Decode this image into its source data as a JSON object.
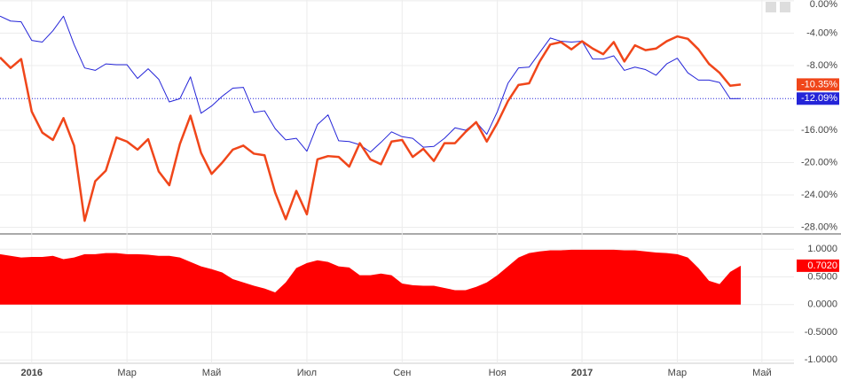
{
  "chart_data": [
    {
      "type": "line",
      "categories": [
        null,
        null,
        null,
        "2016",
        null,
        null,
        null,
        null,
        null,
        null,
        null,
        null,
        "Мар",
        null,
        null,
        null,
        null,
        null,
        null,
        null,
        "Май",
        null,
        null,
        null,
        null,
        null,
        null,
        null,
        null,
        "Июл",
        null,
        null,
        null,
        null,
        null,
        null,
        null,
        null,
        "Сен",
        null,
        null,
        null,
        null,
        null,
        null,
        null,
        null,
        "Ноя",
        null,
        null,
        null,
        null,
        null,
        null,
        null,
        "2017",
        null,
        null,
        null,
        null,
        null,
        null,
        null,
        null,
        "Мар",
        null,
        null,
        null,
        null,
        null,
        null,
        null,
        "Май"
      ],
      "ylim": [
        -28.6,
        0.1
      ],
      "yticks": [
        {
          "value": 0,
          "label": "0.00%"
        },
        {
          "value": -4,
          "label": "-4.00%"
        },
        {
          "value": -8,
          "label": "-8.00%"
        },
        {
          "value": -16,
          "label": "-16.00%"
        },
        {
          "value": -20,
          "label": "-20.00%"
        },
        {
          "value": -24,
          "label": "-24.00%"
        },
        {
          "value": -28,
          "label": "-28.00%"
        }
      ],
      "grid": true,
      "series": [
        {
          "color": "#2424d8",
          "width": 1,
          "values": [
            -1.9,
            -2.5,
            -2.6,
            -4.9,
            -5.1,
            -3.7,
            -1.9,
            -5.4,
            -8.3,
            -8.6,
            -7.8,
            -7.9,
            -7.9,
            -9.6,
            -8.4,
            -9.7,
            -12.5,
            -12.1,
            -9.4,
            -13.9,
            -13.0,
            -11.8,
            -10.8,
            -10.7,
            -13.8,
            -13.6,
            -15.8,
            -17.2,
            -17.0,
            -18.6,
            -15.3,
            -14.1,
            -17.3,
            -17.4,
            -17.8,
            -18.7,
            -17.5,
            -16.2,
            -16.8,
            -17.0,
            -18.1,
            -18.0,
            -17.0,
            -15.7,
            -16.0,
            -15.0,
            -16.5,
            -13.7,
            -10.2,
            -8.3,
            -8.2,
            -6.4,
            -4.6,
            -5.0,
            -5.1,
            -5.0,
            -7.2,
            -7.2,
            -6.8,
            -8.6,
            -8.2,
            -8.5,
            -9.2,
            -7.8,
            -7.1,
            -8.9,
            -9.8,
            -9.8,
            -10.1,
            -12.1,
            -12.09,
            null,
            null
          ],
          "value_labels": [
            null,
            null,
            null,
            null,
            null,
            null,
            null,
            null,
            null,
            null,
            null,
            null,
            null,
            null,
            null,
            null,
            null,
            null,
            null,
            null,
            null,
            null,
            null,
            null,
            null,
            null,
            null,
            null,
            null,
            null,
            null,
            null,
            null,
            null,
            null,
            null,
            null,
            null,
            null,
            null,
            null,
            null,
            null,
            null,
            null,
            null,
            null,
            null,
            null,
            null,
            null,
            null,
            null,
            null,
            null,
            null,
            null,
            null,
            null,
            null,
            null,
            null,
            null,
            null,
            null,
            null,
            null,
            null,
            null,
            null,
            "-12.09%",
            null,
            null
          ]
        },
        {
          "color": "#f0461a",
          "width": 2.5,
          "values": [
            -7.0,
            -8.3,
            -7.2,
            -13.7,
            -16.3,
            -17.2,
            -14.5,
            -17.9,
            -27.2,
            -22.3,
            -21.0,
            -16.9,
            -17.4,
            -18.4,
            -17.1,
            -21.1,
            -22.8,
            -17.7,
            -14.2,
            -18.8,
            -21.4,
            -20.0,
            -18.4,
            -17.9,
            -18.9,
            -19.1,
            -23.7,
            -27.0,
            -23.5,
            -26.4,
            -19.6,
            -19.2,
            -19.3,
            -20.5,
            -17.6,
            -19.6,
            -20.2,
            -17.4,
            -17.2,
            -19.3,
            -18.3,
            -19.8,
            -17.6,
            -17.6,
            -16.2,
            -15.0,
            -17.4,
            -15.1,
            -12.4,
            -10.4,
            -10.2,
            -7.5,
            -5.4,
            -5.1,
            -6.0,
            -5.0,
            -5.9,
            -6.6,
            -5.1,
            -7.5,
            -5.5,
            -6.1,
            -5.9,
            -5.0,
            -4.4,
            -4.7,
            -6.0,
            -7.8,
            -8.9,
            -10.5,
            -10.35,
            null,
            null
          ],
          "value_labels": [
            null,
            null,
            null,
            null,
            null,
            null,
            null,
            null,
            null,
            null,
            null,
            null,
            null,
            null,
            null,
            null,
            null,
            null,
            null,
            null,
            null,
            null,
            null,
            null,
            null,
            null,
            null,
            null,
            null,
            null,
            null,
            null,
            null,
            null,
            null,
            null,
            null,
            null,
            null,
            null,
            null,
            null,
            null,
            null,
            null,
            null,
            null,
            null,
            null,
            null,
            null,
            null,
            null,
            null,
            null,
            null,
            null,
            null,
            null,
            null,
            null,
            null,
            null,
            null,
            null,
            null,
            null,
            null,
            null,
            null,
            "-10.35%",
            null,
            null
          ]
        }
      ]
    },
    {
      "type": "area",
      "color": "#ff0000",
      "ylim": [
        -1.06,
        1.26
      ],
      "yticks": [
        {
          "value": 1,
          "label": "1.0000"
        },
        {
          "value": 0.5,
          "label": "0.5000"
        },
        {
          "value": 0,
          "label": "0.0000"
        },
        {
          "value": -0.5,
          "label": "-0.5000"
        },
        {
          "value": -1,
          "label": "-1.0000"
        }
      ],
      "grid": true,
      "values": [
        0.91,
        0.88,
        0.85,
        0.86,
        0.86,
        0.88,
        0.82,
        0.85,
        0.91,
        0.91,
        0.93,
        0.93,
        0.91,
        0.91,
        0.9,
        0.88,
        0.88,
        0.85,
        0.77,
        0.69,
        0.64,
        0.58,
        0.46,
        0.4,
        0.34,
        0.29,
        0.22,
        0.4,
        0.66,
        0.75,
        0.8,
        0.77,
        0.69,
        0.67,
        0.53,
        0.53,
        0.56,
        0.53,
        0.38,
        0.35,
        0.34,
        0.34,
        0.3,
        0.26,
        0.26,
        0.32,
        0.4,
        0.53,
        0.69,
        0.85,
        0.93,
        0.96,
        0.98,
        0.98,
        0.99,
        0.99,
        0.99,
        0.99,
        0.99,
        0.98,
        0.98,
        0.96,
        0.94,
        0.93,
        0.91,
        0.85,
        0.66,
        0.43,
        0.37,
        0.59,
        0.702,
        null,
        null
      ],
      "value_labels": [
        null,
        null,
        null,
        null,
        null,
        null,
        null,
        null,
        null,
        null,
        null,
        null,
        null,
        null,
        null,
        null,
        null,
        null,
        null,
        null,
        null,
        null,
        null,
        null,
        null,
        null,
        null,
        null,
        null,
        null,
        null,
        null,
        null,
        null,
        null,
        null,
        null,
        null,
        null,
        null,
        null,
        null,
        null,
        null,
        null,
        null,
        null,
        null,
        null,
        null,
        null,
        null,
        null,
        null,
        null,
        null,
        null,
        null,
        null,
        null,
        null,
        null,
        null,
        null,
        null,
        null,
        null,
        null,
        null,
        null,
        "0.7020",
        null,
        null
      ]
    }
  ]
}
